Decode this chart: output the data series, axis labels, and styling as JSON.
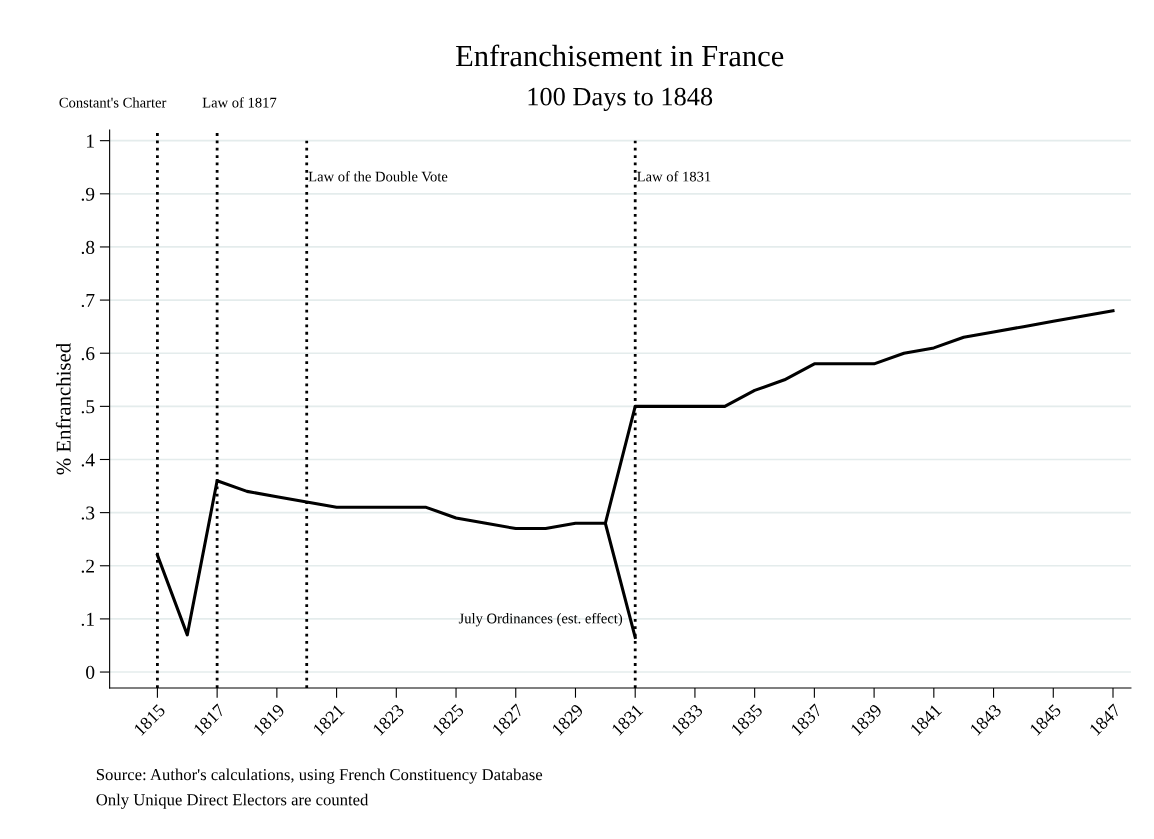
{
  "chart_data": {
    "type": "line",
    "title": "Enfranchisement in France",
    "subtitle": "100 Days to 1848",
    "ylabel": "% Enfranchised",
    "series": [
      {
        "color": "#000000",
        "x": [
          1815,
          1816,
          1817,
          1818,
          1819,
          1820,
          1821,
          1822,
          1823,
          1824,
          1825,
          1826,
          1827,
          1828,
          1829,
          1830,
          1831,
          1832,
          1833,
          1834,
          1835,
          1836,
          1837,
          1838,
          1839,
          1840,
          1841,
          1842,
          1843,
          1844,
          1845,
          1846,
          1847
        ],
        "values": [
          0.22,
          0.07,
          0.36,
          0.34,
          0.33,
          0.32,
          0.31,
          0.31,
          0.31,
          0.31,
          0.29,
          0.28,
          0.27,
          0.27,
          0.28,
          0.28,
          0.5,
          0.5,
          0.5,
          0.5,
          0.53,
          0.55,
          0.58,
          0.58,
          0.58,
          0.6,
          0.61,
          0.63,
          0.64,
          0.65,
          0.66,
          0.67,
          0.68
        ]
      },
      {
        "color": "#000000",
        "x": [
          1830,
          1831
        ],
        "values": [
          0.28,
          0.065
        ]
      }
    ],
    "xlim": [
      1813.4,
      1847.6
    ],
    "ylim": [
      -0.03,
      1.02
    ],
    "xticks": [
      1815,
      1817,
      1819,
      1821,
      1823,
      1825,
      1827,
      1829,
      1831,
      1833,
      1835,
      1837,
      1839,
      1841,
      1843,
      1845,
      1847
    ],
    "yticks": [
      {
        "value": 0,
        "label": "0"
      },
      {
        "value": 0.1,
        "label": ".1"
      },
      {
        "value": 0.2,
        "label": ".2"
      },
      {
        "value": 0.3,
        "label": ".3"
      },
      {
        "value": 0.4,
        "label": ".4"
      },
      {
        "value": 0.5,
        "label": ".5"
      },
      {
        "value": 0.6,
        "label": ".6"
      },
      {
        "value": 0.7,
        "label": ".7"
      },
      {
        "value": 0.8,
        "label": ".8"
      },
      {
        "value": 0.9,
        "label": ".9"
      },
      {
        "value": 1,
        "label": "1"
      }
    ],
    "grid": "y",
    "marker": "none",
    "line_style": "solid",
    "ref_lines": [
      {
        "axis": "x",
        "value": 1815,
        "label": "Constant's Charter",
        "line_style": "dotted",
        "color": "#000000"
      },
      {
        "axis": "x",
        "value": 1817,
        "label": "Law of 1817",
        "line_style": "dotted",
        "color": "#000000"
      },
      {
        "axis": "x",
        "value": 1820,
        "label": "Law of the Double Vote",
        "line_style": "dotted",
        "color": "#000000"
      },
      {
        "axis": "x",
        "value": 1831,
        "label": "Law of 1831",
        "line_style": "dotted",
        "color": "#000000"
      }
    ],
    "annotations": [
      {
        "text": "July Ordinances (est. effect)",
        "x": 1831,
        "y": 0.065
      },
      "Source: Author's calculations, using French Constituency Database",
      "Only Unique Direct Electors are counted"
    ]
  }
}
